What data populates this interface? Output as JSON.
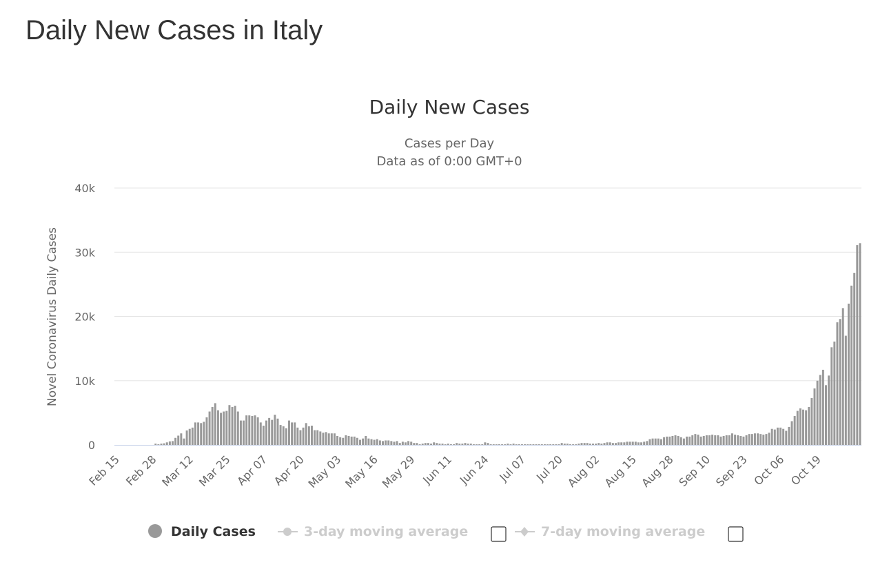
{
  "page": {
    "title": "Daily New Cases in Italy"
  },
  "legend": {
    "items": [
      {
        "label": "Daily Cases",
        "active": true
      },
      {
        "label": "3-day moving average",
        "active": false
      },
      {
        "label": "7-day moving average",
        "active": false
      }
    ]
  },
  "colors": {
    "bar": "#999999",
    "grid": "#e6e6e6",
    "axis_text": "#666666",
    "title": "#333333",
    "legend_inactive": "#cccccc"
  },
  "chart_data": {
    "type": "bar",
    "title": "Daily New Cases",
    "subtitle_lines": [
      "Cases per Day",
      "Data as of 0:00 GMT+0"
    ],
    "ylabel": "Novel Coronavirus Daily Cases",
    "xlabel": "",
    "ylim": [
      0,
      40000
    ],
    "y_ticks": [
      0,
      10000,
      20000,
      30000,
      40000
    ],
    "y_tick_labels": [
      "0",
      "10k",
      "20k",
      "30k",
      "40k"
    ],
    "x_tick_labels": [
      "Feb 15",
      "Feb 28",
      "Mar 12",
      "Mar 25",
      "Apr 07",
      "Apr 20",
      "May 03",
      "May 16",
      "May 29",
      "Jun 11",
      "Jun 24",
      "Jul 07",
      "Jul 20",
      "Aug 02",
      "Aug 15",
      "Aug 28",
      "Sep 10",
      "Sep 23",
      "Oct 06",
      "Oct 19"
    ],
    "x_tick_every": 13,
    "grid": true,
    "legend_position": "bottom",
    "series": [
      {
        "name": "Daily Cases",
        "start_date": "Feb 15",
        "values": [
          0,
          0,
          0,
          0,
          0,
          0,
          0,
          0,
          0,
          0,
          0,
          0,
          0,
          0,
          200,
          100,
          200,
          250,
          400,
          550,
          600,
          1100,
          1450,
          1800,
          1000,
          2250,
          2500,
          2700,
          3500,
          3500,
          3400,
          3600,
          4300,
          5200,
          5900,
          6500,
          5400,
          5000,
          5200,
          5300,
          6200,
          5900,
          6100,
          5200,
          3800,
          3800,
          4600,
          4600,
          4500,
          4600,
          4300,
          3500,
          3000,
          3800,
          4200,
          3900,
          4700,
          4100,
          3100,
          2900,
          2600,
          3800,
          3500,
          3500,
          2700,
          2300,
          2700,
          3400,
          2900,
          3000,
          2300,
          2300,
          2100,
          1900,
          2000,
          1800,
          1800,
          1800,
          1400,
          1200,
          1100,
          1500,
          1400,
          1300,
          1300,
          1100,
          800,
          1000,
          1400,
          1000,
          900,
          800,
          900,
          700,
          600,
          700,
          700,
          600,
          500,
          600,
          300,
          500,
          400,
          600,
          500,
          300,
          300,
          100,
          200,
          300,
          300,
          200,
          400,
          300,
          200,
          200,
          100,
          200,
          100,
          100,
          300,
          200,
          200,
          300,
          200,
          200,
          100,
          100,
          100,
          100,
          400,
          300,
          100,
          100,
          100,
          100,
          100,
          100,
          200,
          100,
          200,
          100,
          100,
          100,
          100,
          100,
          100,
          100,
          100,
          100,
          100,
          100,
          100,
          100,
          100,
          100,
          100,
          300,
          200,
          200,
          100,
          100,
          100,
          200,
          300,
          300,
          300,
          200,
          200,
          200,
          300,
          200,
          300,
          400,
          400,
          300,
          300,
          400,
          400,
          400,
          500,
          500,
          500,
          500,
          400,
          400,
          500,
          600,
          900,
          1000,
          1000,
          1000,
          900,
          1200,
          1300,
          1300,
          1400,
          1500,
          1400,
          1200,
          1000,
          1300,
          1300,
          1500,
          1700,
          1600,
          1300,
          1400,
          1500,
          1500,
          1600,
          1500,
          1500,
          1300,
          1400,
          1500,
          1500,
          1800,
          1600,
          1500,
          1400,
          1300,
          1500,
          1700,
          1700,
          1800,
          1800,
          1700,
          1600,
          1700,
          1900,
          2500,
          2400,
          2700,
          2700,
          2500,
          2200,
          2800,
          3700,
          4500,
          5300,
          5700,
          5500,
          5400,
          5900,
          7300,
          8800,
          10000,
          10900,
          11700,
          9300,
          10800,
          15200,
          16100,
          19100,
          19600,
          21300,
          17000,
          22000,
          24800,
          26800,
          31100,
          31400
        ]
      }
    ]
  }
}
